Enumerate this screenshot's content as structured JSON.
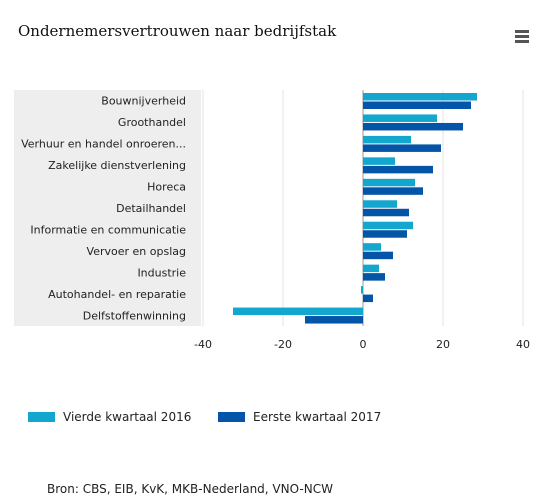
{
  "header": {
    "title": "Ondernemersvertrouwen naar bedrijfstak"
  },
  "menu": {
    "icon": "hamburger-menu-icon"
  },
  "chart_data": {
    "type": "bar",
    "orientation": "horizontal",
    "title": "Ondernemersvertrouwen naar bedrijfstak",
    "categories": [
      "Bouwnijverheid",
      "Groothandel",
      "Verhuur en handel onroeren...",
      "Zakelijke dienstverlening",
      "Horeca",
      "Detailhandel",
      "Informatie en communicatie",
      "Vervoer en opslag",
      "Industrie",
      "Autohandel- en reparatie",
      "Delfstoffenwinning"
    ],
    "series": [
      {
        "name": "Vierde kwartaal 2016",
        "color": "#13a6cf",
        "values": [
          28.5,
          18.5,
          12,
          8,
          13,
          8.5,
          12.5,
          4.5,
          4,
          -0.5,
          -32.5
        ]
      },
      {
        "name": "Eerste kwartaal 2017",
        "color": "#0454a8",
        "values": [
          27,
          25,
          19.5,
          17.5,
          15,
          11.5,
          11,
          7.5,
          5.5,
          2.5,
          -14.5
        ]
      }
    ],
    "xlim": [
      -40,
      40
    ],
    "xticks": [
      -40,
      -20,
      0,
      20,
      40
    ],
    "grid": true,
    "legend_position": "bottom"
  },
  "source": "Bron: CBS, EIB, KvK, MKB-Nederland, VNO-NCW"
}
